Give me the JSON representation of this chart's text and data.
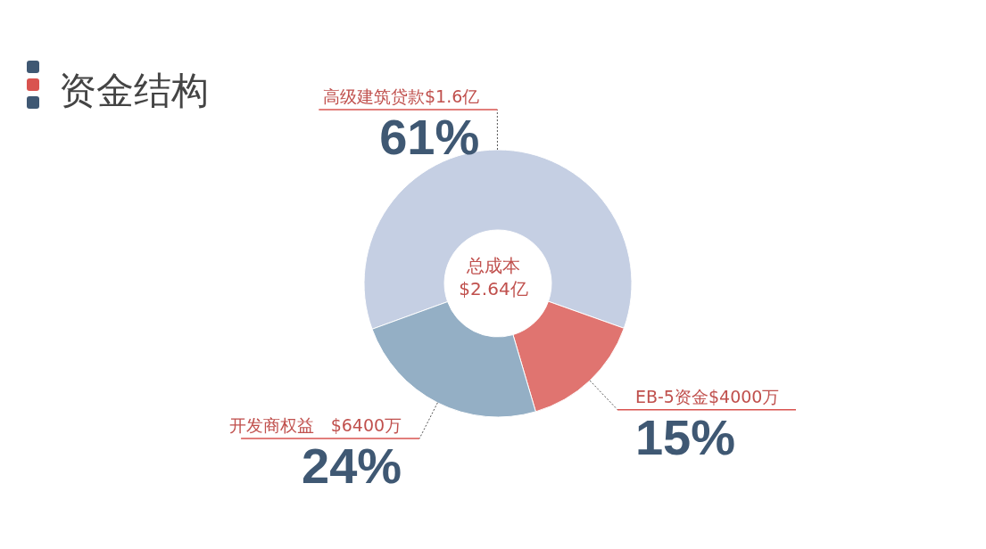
{
  "chart_data": {
    "type": "donut",
    "title": "资金结构",
    "categories": [
      "高级建筑贷款$1.6亿",
      "EB-5资金$4000万",
      "开发商权益　$6400万"
    ],
    "values": [
      61,
      15,
      24
    ],
    "value_labels": [
      "61%",
      "15%",
      "24%"
    ],
    "colors": [
      "#c5cfe3",
      "#e07470",
      "#94afc5"
    ],
    "annotations": [
      "总成本\n$2.64亿"
    ]
  }
}
